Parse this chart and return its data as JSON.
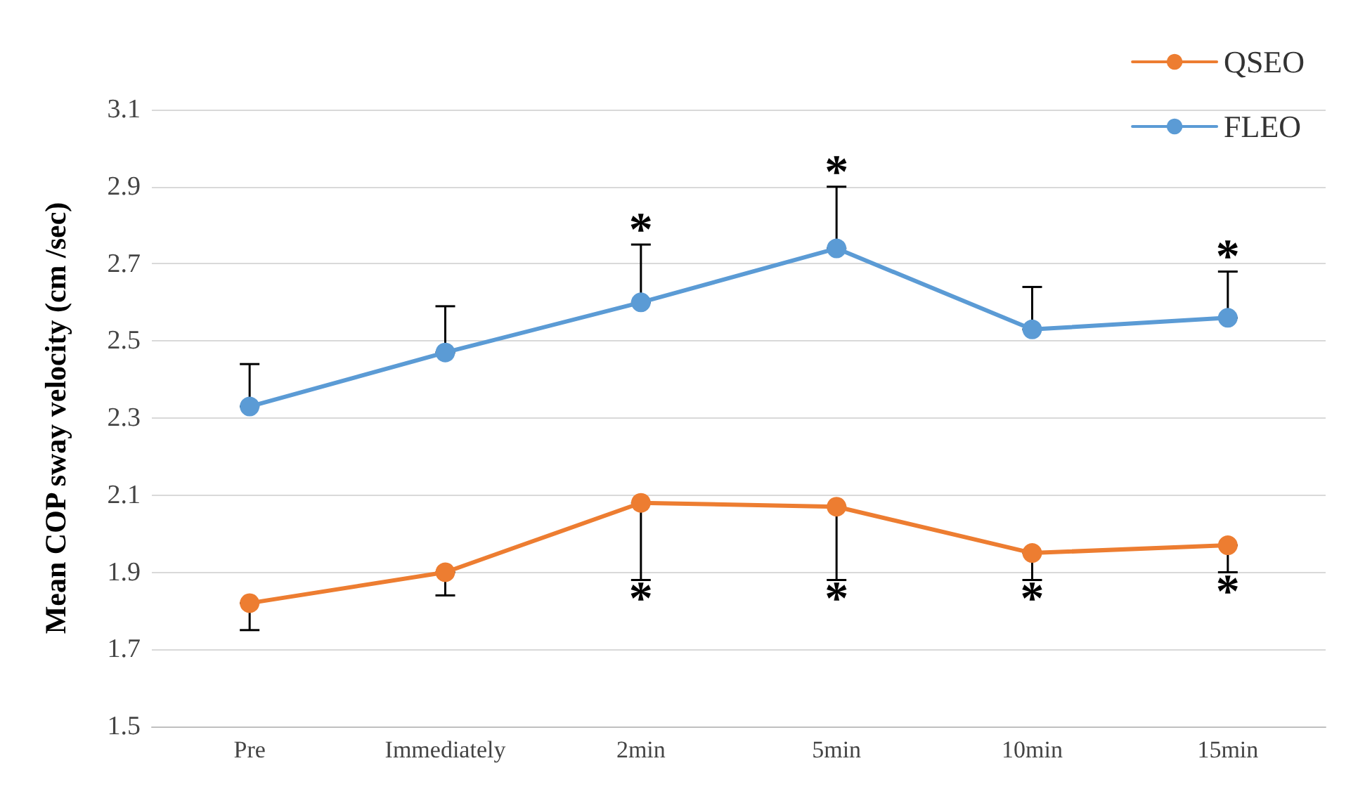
{
  "chart_data": {
    "type": "line",
    "ylabel": "Mean COP sway velocity (cm /sec)",
    "categories": [
      "Pre",
      "Immediately",
      "2min",
      "5min",
      "10min",
      "15min"
    ],
    "series": [
      {
        "name": "QSEO",
        "color": "#ed7d31",
        "values": [
          1.82,
          1.9,
          2.08,
          2.07,
          1.95,
          1.97
        ],
        "errors": [
          [
            1.75,
            1.82
          ],
          [
            1.84,
            1.9
          ],
          [
            1.88,
            2.08
          ],
          [
            1.88,
            2.07
          ],
          [
            1.88,
            1.95
          ],
          [
            1.9,
            1.97
          ]
        ]
      },
      {
        "name": "FLEO",
        "color": "#5b9bd5",
        "values": [
          2.33,
          2.47,
          2.6,
          2.74,
          2.53,
          2.56
        ],
        "errors": [
          [
            2.33,
            2.44
          ],
          [
            2.47,
            2.59
          ],
          [
            2.6,
            2.75
          ],
          [
            2.74,
            2.9
          ],
          [
            2.53,
            2.64
          ],
          [
            2.56,
            2.68
          ]
        ]
      }
    ],
    "ylim": [
      1.5,
      3.1
    ],
    "yticks": [
      1.5,
      1.7,
      1.9,
      2.1,
      2.3,
      2.5,
      2.7,
      2.9,
      3.1
    ],
    "grid": "y",
    "legend": "top right",
    "marker": "circle",
    "line_style": "solid",
    "annotations": [
      {
        "text": "*",
        "x": "2min",
        "y": 1.88
      },
      {
        "text": "*",
        "x": "5min",
        "y": 1.88
      },
      {
        "text": "*",
        "x": "10min",
        "y": 1.88
      },
      {
        "text": "*",
        "x": "15min",
        "y": 1.9
      },
      {
        "text": "*",
        "x": "2min",
        "y": 2.75
      },
      {
        "text": "*",
        "x": "5min",
        "y": 2.9
      },
      {
        "text": "*",
        "x": "15min",
        "y": 2.68
      }
    ]
  }
}
